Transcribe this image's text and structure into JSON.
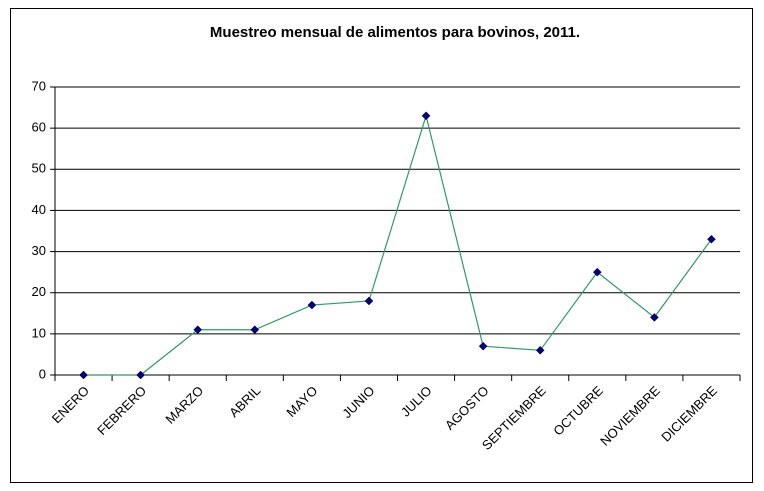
{
  "chart_data": {
    "type": "line",
    "title": "Muestreo mensual de alimentos para bovinos, 2011.",
    "categories": [
      "ENERO",
      "FEBRERO",
      "MARZO",
      "ABRIL",
      "MAYO",
      "JUNIO",
      "JULIO",
      "AGOSTO",
      "SEPTIEMBRE",
      "OCTUBRE",
      "NOVIEMBRE",
      "DICIEMBRE"
    ],
    "values": [
      0,
      0,
      11,
      11,
      17,
      18,
      63,
      7,
      6,
      25,
      14,
      33
    ],
    "color": "#339966",
    "marker_color": "#000080",
    "ylim": [
      0,
      70
    ],
    "yticks": [
      0,
      10,
      20,
      30,
      40,
      50,
      60,
      70
    ],
    "grid": true
  }
}
